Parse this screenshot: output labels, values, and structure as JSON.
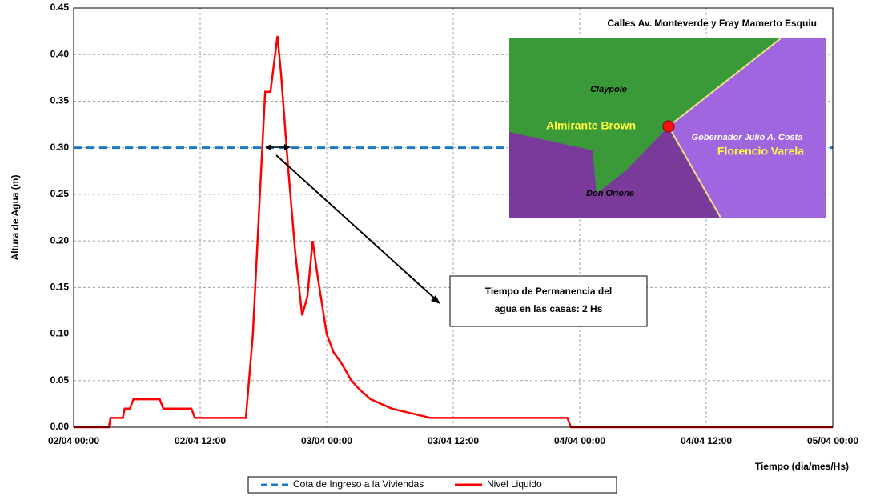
{
  "chart_data": {
    "type": "line",
    "y_label": "Altura de Agua (m)",
    "x_label": "Tiempo (dia/mes/Hs)",
    "xlim": [
      "02/04 00:00",
      "05/04 00:00"
    ],
    "xticks": [
      "02/04 00:00",
      "02/04 12:00",
      "03/04 00:00",
      "03/04 12:00",
      "04/04 00:00",
      "04/04 12:00",
      "05/04 00:00"
    ],
    "ylim": [
      0,
      0.45
    ],
    "yticks": [
      {
        "value": 0,
        "label": "0.00"
      },
      {
        "value": 0.05,
        "label": "0.05"
      },
      {
        "value": 0.1,
        "label": "0.10"
      },
      {
        "value": 0.15,
        "label": "0.15"
      },
      {
        "value": 0.2,
        "label": "0.20"
      },
      {
        "value": 0.25,
        "label": "0.25"
      },
      {
        "value": 0.3,
        "label": "0.30"
      },
      {
        "value": 0.35,
        "label": "0.35"
      },
      {
        "value": 0.4,
        "label": "0.40"
      },
      {
        "value": 0.45,
        "label": "0.45"
      }
    ],
    "grid": true,
    "series": [
      {
        "name": "Cota de Ingreso a la Viviendas",
        "color": "#1f78c8",
        "dashed": true,
        "x": [
          "02/04 00:00",
          "05/04 00:00"
        ],
        "values": [
          0.3,
          0.3
        ]
      },
      {
        "name": "Nivel Liquido",
        "color": "#ff0000",
        "dashed": false,
        "x": [
          "02/04 00:00",
          "02/04 03:20",
          "02/04 03:30",
          "02/04 04:40",
          "02/04 04:50",
          "02/04 05:20",
          "02/04 05:40",
          "02/04 08:10",
          "02/04 08:30",
          "02/04 11:10",
          "02/04 11:30",
          "02/04 16:20",
          "02/04 17:00",
          "02/04 17:40",
          "02/04 18:10",
          "02/04 18:40",
          "02/04 19:20",
          "02/04 19:40",
          "02/04 20:20",
          "02/04 21:00",
          "02/04 21:40",
          "02/04 22:10",
          "02/04 22:40",
          "02/04 23:10",
          "03/04 00:00",
          "03/04 00:40",
          "03/04 01:20",
          "03/04 01:50",
          "03/04 02:20",
          "03/04 03:10",
          "03/04 04:10",
          "03/04 06:10",
          "03/04 09:50",
          "03/04 22:50",
          "03/04 23:10",
          "05/04 00:00"
        ],
        "values": [
          0,
          0,
          0.01,
          0.01,
          0.02,
          0.02,
          0.03,
          0.03,
          0.02,
          0.02,
          0.01,
          0.01,
          0.1,
          0.25,
          0.36,
          0.36,
          0.42,
          0.38,
          0.28,
          0.19,
          0.12,
          0.14,
          0.2,
          0.16,
          0.1,
          0.08,
          0.07,
          0.06,
          0.05,
          0.04,
          0.03,
          0.02,
          0.01,
          0.01,
          0,
          0
        ]
      }
    ],
    "annotation": [
      "Tiempo de Permanencia del",
      "agua en las casas: 2 Hs"
    ],
    "inset_title": "Calles Av. Monteverde y Fray Mamerto Esquiu",
    "map_labels": [
      "Claypole",
      "Almirante Brown",
      "Gobernador Julio A. Costa",
      "Florencio Varela",
      "Don Orione"
    ]
  }
}
